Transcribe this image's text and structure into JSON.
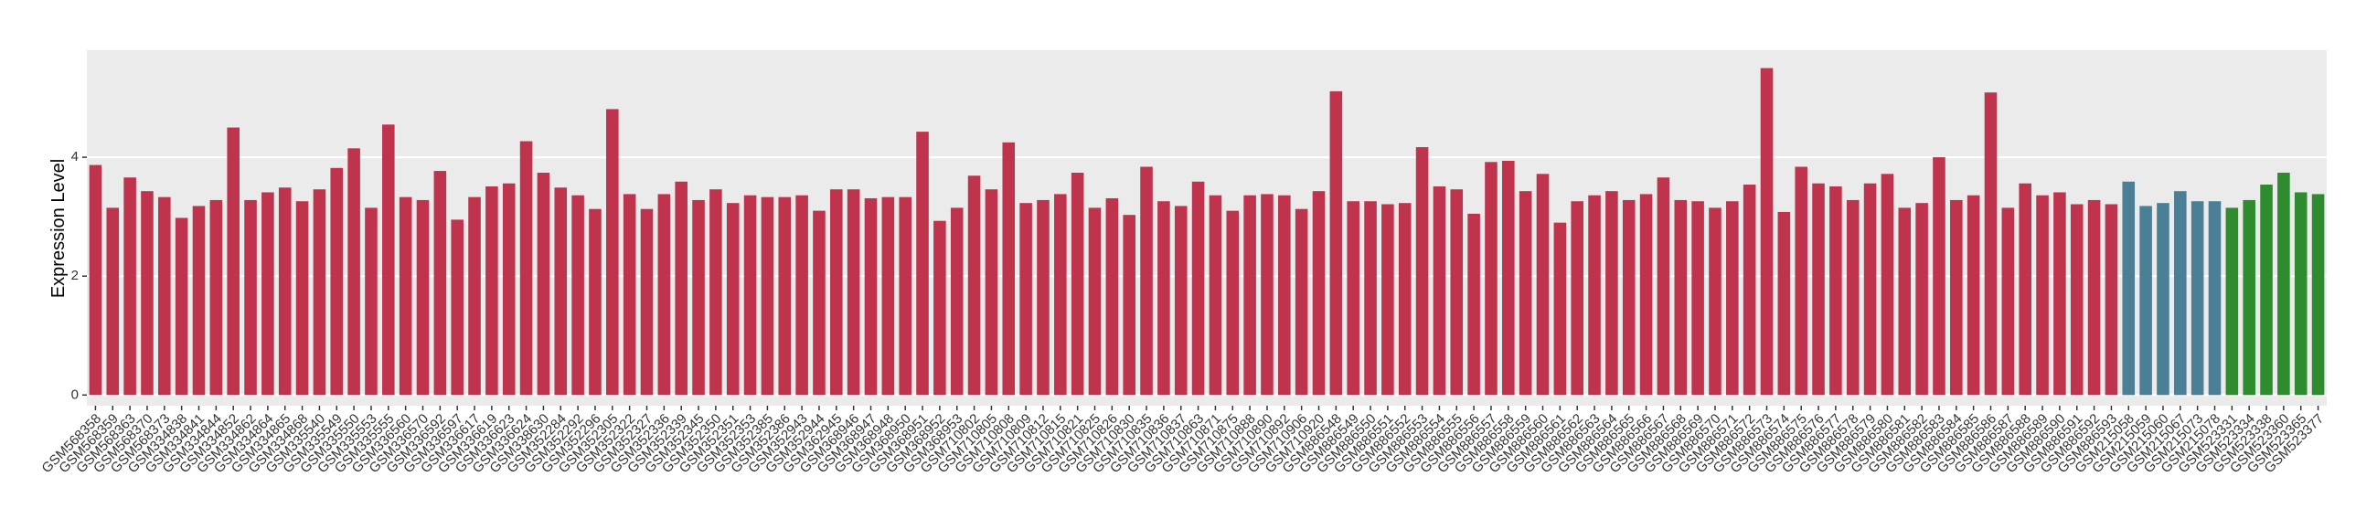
{
  "chart_data": {
    "type": "bar",
    "y_label": "Expression Level",
    "categories": [
      "GSM568358",
      "GSM568359",
      "GSM568363",
      "GSM568370",
      "GSM568373",
      "GSM334838",
      "GSM334841",
      "GSM334844",
      "GSM334852",
      "GSM334862",
      "GSM334864",
      "GSM334865",
      "GSM334868",
      "GSM335540",
      "GSM335549",
      "GSM335550",
      "GSM335553",
      "GSM335555",
      "GSM336560",
      "GSM336570",
      "GSM336592",
      "GSM336597",
      "GSM336617",
      "GSM336619",
      "GSM336623",
      "GSM336624",
      "GSM338630",
      "GSM352284",
      "GSM352292",
      "GSM352296",
      "GSM352305",
      "GSM352322",
      "GSM352327",
      "GSM352336",
      "GSM352339",
      "GSM352345",
      "GSM352350",
      "GSM352351",
      "GSM352353",
      "GSM352385",
      "GSM352386",
      "GSM352943",
      "GSM352944",
      "GSM362945",
      "GSM368946",
      "GSM368947",
      "GSM368948",
      "GSM368950",
      "GSM368951",
      "GSM368952",
      "GSM368953",
      "GSM710802",
      "GSM710805",
      "GSM710808",
      "GSM710809",
      "GSM710812",
      "GSM710815",
      "GSM710821",
      "GSM710825",
      "GSM710826",
      "GSM710830",
      "GSM710835",
      "GSM710836",
      "GSM710837",
      "GSM710863",
      "GSM710871",
      "GSM710875",
      "GSM710888",
      "GSM710890",
      "GSM710892",
      "GSM710906",
      "GSM710920",
      "GSM886548",
      "GSM886549",
      "GSM886550",
      "GSM886551",
      "GSM886552",
      "GSM886553",
      "GSM886554",
      "GSM886555",
      "GSM886556",
      "GSM886557",
      "GSM886558",
      "GSM886559",
      "GSM886560",
      "GSM886561",
      "GSM886562",
      "GSM886563",
      "GSM886564",
      "GSM886565",
      "GSM886566",
      "GSM886567",
      "GSM886568",
      "GSM886569",
      "GSM886570",
      "GSM886571",
      "GSM886572",
      "GSM886573",
      "GSM886574",
      "GSM886575",
      "GSM886576",
      "GSM886577",
      "GSM886578",
      "GSM886579",
      "GSM886580",
      "GSM886581",
      "GSM886582",
      "GSM886583",
      "GSM886584",
      "GSM886585",
      "GSM886586",
      "GSM886587",
      "GSM886588",
      "GSM886589",
      "GSM886590",
      "GSM886591",
      "GSM886592",
      "GSM886593",
      "GSM215058",
      "GSM215059",
      "GSM215060",
      "GSM215067",
      "GSM215073",
      "GSM215078",
      "GSM523331",
      "GSM523334",
      "GSM523338",
      "GSM523360",
      "GSM523365",
      "GSM523377"
    ],
    "values": [
      3.87,
      3.15,
      3.66,
      3.43,
      3.33,
      2.98,
      3.18,
      3.28,
      4.5,
      3.28,
      3.41,
      3.49,
      3.26,
      3.46,
      3.82,
      4.15,
      3.15,
      4.55,
      3.33,
      3.28,
      3.77,
      2.95,
      3.33,
      3.51,
      3.56,
      4.27,
      3.74,
      3.49,
      3.36,
      3.13,
      4.81,
      3.38,
      3.13,
      3.38,
      3.59,
      3.28,
      3.46,
      3.23,
      3.36,
      3.33,
      3.33,
      3.36,
      3.1,
      3.46,
      3.46,
      3.31,
      3.33,
      3.33,
      4.43,
      2.93,
      3.15,
      3.69,
      3.46,
      4.25,
      3.23,
      3.28,
      3.38,
      3.74,
      3.15,
      3.31,
      3.03,
      3.84,
      3.26,
      3.18,
      3.59,
      3.36,
      3.1,
      3.36,
      3.38,
      3.36,
      3.13,
      3.43,
      5.11,
      3.26,
      3.26,
      3.21,
      3.23,
      4.17,
      3.51,
      3.46,
      3.05,
      3.92,
      3.94,
      3.43,
      3.72,
      2.9,
      3.26,
      3.36,
      3.43,
      3.28,
      3.38,
      3.66,
      3.28,
      3.26,
      3.15,
      3.26,
      3.54,
      5.5,
      3.08,
      3.84,
      3.56,
      3.51,
      3.28,
      3.56,
      3.72,
      3.15,
      3.23,
      4.0,
      3.28,
      3.36,
      5.09,
      3.15,
      3.56,
      3.36,
      3.41,
      3.21,
      3.28,
      3.21,
      3.59,
      3.18,
      3.23,
      3.43,
      3.26,
      3.26,
      3.15,
      3.28,
      3.54,
      3.74,
      3.41,
      3.38
    ],
    "bar_colors": [
      "#c0334d",
      "#c0334d",
      "#c0334d",
      "#c0334d",
      "#c0334d",
      "#c0334d",
      "#c0334d",
      "#c0334d",
      "#c0334d",
      "#c0334d",
      "#c0334d",
      "#c0334d",
      "#c0334d",
      "#c0334d",
      "#c0334d",
      "#c0334d",
      "#c0334d",
      "#c0334d",
      "#c0334d",
      "#c0334d",
      "#c0334d",
      "#c0334d",
      "#c0334d",
      "#c0334d",
      "#c0334d",
      "#c0334d",
      "#c0334d",
      "#c0334d",
      "#c0334d",
      "#c0334d",
      "#c0334d",
      "#c0334d",
      "#c0334d",
      "#c0334d",
      "#c0334d",
      "#c0334d",
      "#c0334d",
      "#c0334d",
      "#c0334d",
      "#c0334d",
      "#c0334d",
      "#c0334d",
      "#c0334d",
      "#c0334d",
      "#c0334d",
      "#c0334d",
      "#c0334d",
      "#c0334d",
      "#c0334d",
      "#c0334d",
      "#c0334d",
      "#c0334d",
      "#c0334d",
      "#c0334d",
      "#c0334d",
      "#c0334d",
      "#c0334d",
      "#c0334d",
      "#c0334d",
      "#c0334d",
      "#c0334d",
      "#c0334d",
      "#c0334d",
      "#c0334d",
      "#c0334d",
      "#c0334d",
      "#c0334d",
      "#c0334d",
      "#c0334d",
      "#c0334d",
      "#c0334d",
      "#c0334d",
      "#c0334d",
      "#c0334d",
      "#c0334d",
      "#c0334d",
      "#c0334d",
      "#c0334d",
      "#c0334d",
      "#c0334d",
      "#c0334d",
      "#c0334d",
      "#c0334d",
      "#c0334d",
      "#c0334d",
      "#c0334d",
      "#c0334d",
      "#c0334d",
      "#c0334d",
      "#c0334d",
      "#c0334d",
      "#c0334d",
      "#c0334d",
      "#c0334d",
      "#c0334d",
      "#c0334d",
      "#c0334d",
      "#c0334d",
      "#c0334d",
      "#c0334d",
      "#c0334d",
      "#c0334d",
      "#c0334d",
      "#c0334d",
      "#c0334d",
      "#c0334d",
      "#c0334d",
      "#c0334d",
      "#c0334d",
      "#c0334d",
      "#c0334d",
      "#c0334d",
      "#c0334d",
      "#c0334d",
      "#c0334d",
      "#c0334d",
      "#c0334d",
      "#c0334d",
      "#4a7f96",
      "#4a7f96",
      "#4a7f96",
      "#4a7f96",
      "#4a7f96",
      "#4a7f96",
      "#2e8b2e",
      "#2e8b2e",
      "#2e8b2e",
      "#2e8b2e",
      "#2e8b2e",
      "#2e8b2e"
    ],
    "ylim": [
      -0.18,
      5.8
    ],
    "yticks": [
      0,
      2,
      4
    ],
    "grid": true
  }
}
